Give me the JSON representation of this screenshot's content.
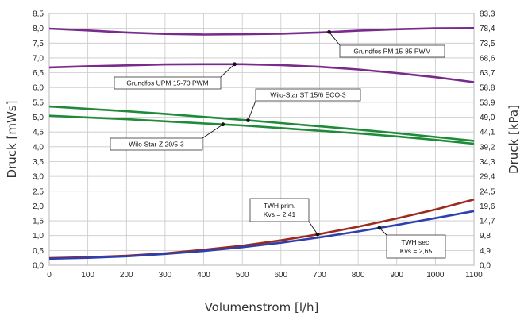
{
  "chart_data": {
    "type": "line",
    "xlabel": "Volumenstrom [l/h]",
    "ylabel": "Druck [mWs]",
    "y2label": "Druck [kPa]",
    "xlim": [
      0,
      1100
    ],
    "ylim": [
      0,
      8.5
    ],
    "x_ticks": [
      "0",
      "100",
      "200",
      "300",
      "400",
      "500",
      "600",
      "700",
      "800",
      "900",
      "1000",
      "1100"
    ],
    "y_ticks": [
      "0,0",
      "0,5",
      "1,0",
      "1,5",
      "2,0",
      "2,5",
      "3,0",
      "3,5",
      "4,0",
      "4,5",
      "5,0",
      "5,5",
      "6,0",
      "6,5",
      "7,0",
      "7,5",
      "8,0",
      "8,5"
    ],
    "y2_ticks": [
      "0,0",
      "4,9",
      "9,8",
      "14,7",
      "19,6",
      "24,5",
      "29,4",
      "34,3",
      "39,2",
      "44,1",
      "49,0",
      "53,9",
      "58,8",
      "63,7",
      "68,6",
      "73,5",
      "78,4",
      "83,3"
    ],
    "grid": true,
    "series": [
      {
        "name": "Grundfos PM 15-85 PWM",
        "color": "#7a2a8c",
        "x": [
          0,
          100,
          200,
          300,
          400,
          500,
          600,
          700,
          800,
          900,
          1000,
          1100
        ],
        "y": [
          7.99,
          7.93,
          7.86,
          7.81,
          7.79,
          7.8,
          7.82,
          7.86,
          7.92,
          7.97,
          8.0,
          8.01
        ]
      },
      {
        "name": "Grundfos UPM 15-70 PWM",
        "color": "#7a2a8c",
        "x": [
          0,
          100,
          200,
          300,
          400,
          500,
          600,
          700,
          800,
          900,
          1000,
          1100
        ],
        "y": [
          6.68,
          6.72,
          6.75,
          6.78,
          6.79,
          6.79,
          6.76,
          6.7,
          6.61,
          6.49,
          6.35,
          6.18
        ]
      },
      {
        "name": "Wilo-Star ST 15/6 ECO-3",
        "color": "#1f8a3a",
        "x": [
          0,
          100,
          200,
          300,
          400,
          500,
          600,
          700,
          800,
          900,
          1000,
          1100
        ],
        "y": [
          5.36,
          5.28,
          5.2,
          5.11,
          5.01,
          4.91,
          4.8,
          4.69,
          4.58,
          4.46,
          4.33,
          4.2
        ]
      },
      {
        "name": "Wilo-Star-Z 20/5-3",
        "color": "#1f8a3a",
        "x": [
          0,
          100,
          200,
          300,
          400,
          500,
          600,
          700,
          800,
          900,
          1000,
          1100
        ],
        "y": [
          5.05,
          4.99,
          4.93,
          4.86,
          4.79,
          4.72,
          4.63,
          4.54,
          4.45,
          4.35,
          4.23,
          4.1
        ]
      },
      {
        "name": "TWH prim.",
        "color": "#9b2a1e",
        "x": [
          0,
          100,
          200,
          300,
          400,
          500,
          600,
          700,
          800,
          900,
          1000,
          1100
        ],
        "y": [
          0.24,
          0.27,
          0.32,
          0.4,
          0.52,
          0.66,
          0.84,
          1.05,
          1.3,
          1.58,
          1.88,
          2.22
        ]
      },
      {
        "name": "TWH sec.",
        "color": "#2e3fb0",
        "x": [
          0,
          100,
          200,
          300,
          400,
          500,
          600,
          700,
          800,
          900,
          1000,
          1100
        ],
        "y": [
          0.22,
          0.25,
          0.3,
          0.38,
          0.48,
          0.61,
          0.76,
          0.94,
          1.14,
          1.36,
          1.59,
          1.83
        ]
      }
    ],
    "annotations": [
      {
        "series": 0,
        "lines": [
          "Grundfos PM 15-85 PWM"
        ],
        "at_x": 725
      },
      {
        "series": 1,
        "lines": [
          "Grundfos UPM 15-70 PWM"
        ],
        "at_x": 480
      },
      {
        "series": 2,
        "lines": [
          "Wilo-Star ST 15/6 ECO-3"
        ],
        "at_x": 515
      },
      {
        "series": 3,
        "lines": [
          "Wilo-Star-Z 20/5-3"
        ],
        "at_x": 450
      },
      {
        "series": 4,
        "lines": [
          "TWH prim.",
          "Kvs = 2,41"
        ],
        "at_x": 695
      },
      {
        "series": 5,
        "lines": [
          "TWH sec.",
          "Kvs = 2,65"
        ],
        "at_x": 855
      }
    ]
  }
}
